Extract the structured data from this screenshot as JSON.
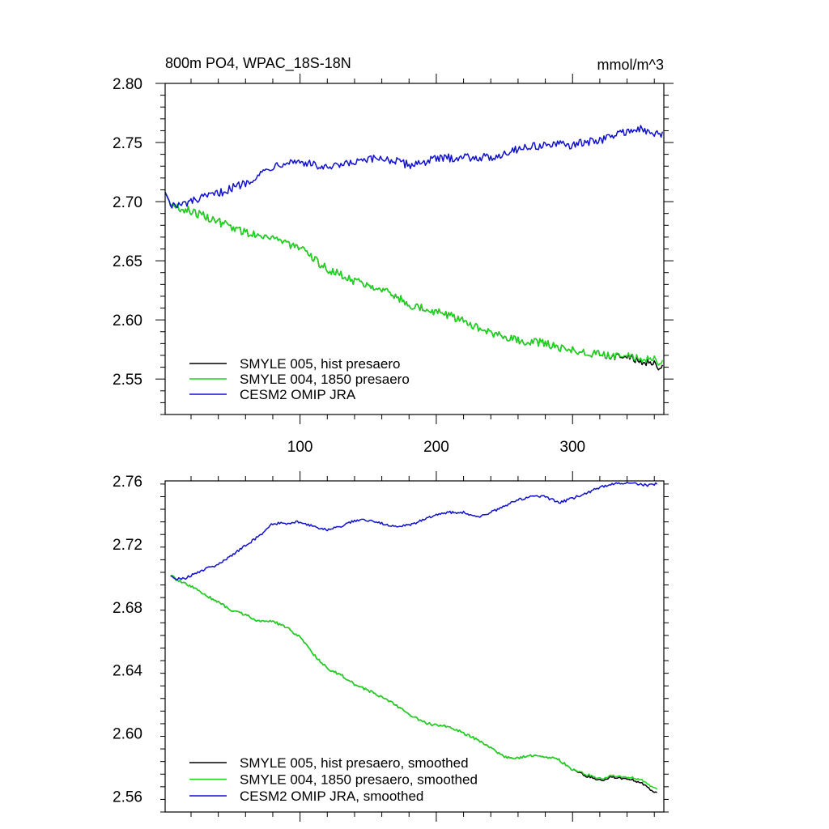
{
  "figure": {
    "title_left": "800m PO4, WPAC_18S-18N",
    "title_right": "mmol/m^3"
  },
  "colors": {
    "hist": "#000000",
    "y1850": "#19d919",
    "omip": "#1010d0"
  },
  "chart_data": [
    {
      "type": "line",
      "title": "800m PO4, WPAC_18S-18N",
      "units": "mmol/m^3",
      "xlim": [
        1,
        367
      ],
      "ylim": [
        2.52,
        2.8
      ],
      "xticks": [
        100,
        200,
        300
      ],
      "xtick_labels": [
        "100",
        "200",
        "300"
      ],
      "yticks": [
        2.55,
        2.6,
        2.65,
        2.7,
        2.75,
        2.8
      ],
      "ytick_labels": [
        "2.55",
        "2.60",
        "2.65",
        "2.70",
        "2.75",
        "2.80"
      ],
      "noise": 0.0035,
      "legend_position": "bottom-left",
      "series": [
        {
          "name": "SMYLE 005, hist presaero",
          "color": "#000000",
          "x": [
            1,
            5,
            10,
            20,
            40,
            60,
            80,
            100,
            120,
            140,
            160,
            180,
            200,
            220,
            240,
            260,
            280,
            300,
            320,
            340,
            350,
            360,
            366
          ],
          "y": [
            2.708,
            2.698,
            2.695,
            2.692,
            2.683,
            2.674,
            2.67,
            2.66,
            2.643,
            2.633,
            2.627,
            2.613,
            2.607,
            2.6,
            2.588,
            2.583,
            2.58,
            2.574,
            2.571,
            2.569,
            2.566,
            2.562,
            2.56
          ]
        },
        {
          "name": "SMYLE 004, 1850 presaero",
          "color": "#19d919",
          "x": [
            1,
            5,
            10,
            20,
            40,
            60,
            80,
            100,
            120,
            140,
            160,
            180,
            200,
            220,
            240,
            260,
            280,
            300,
            320,
            340,
            350,
            360,
            366
          ],
          "y": [
            2.708,
            2.698,
            2.695,
            2.692,
            2.683,
            2.674,
            2.67,
            2.66,
            2.643,
            2.633,
            2.627,
            2.613,
            2.607,
            2.6,
            2.588,
            2.583,
            2.58,
            2.574,
            2.571,
            2.57,
            2.568,
            2.566,
            2.564
          ]
        },
        {
          "name": "CESM2 OMIP JRA",
          "color": "#1010d0",
          "x": [
            1,
            5,
            10,
            20,
            40,
            60,
            80,
            90,
            100,
            120,
            140,
            160,
            180,
            200,
            220,
            240,
            260,
            280,
            300,
            320,
            340,
            350,
            360,
            366
          ],
          "y": [
            2.708,
            2.698,
            2.696,
            2.7,
            2.707,
            2.716,
            2.73,
            2.734,
            2.734,
            2.728,
            2.733,
            2.737,
            2.731,
            2.736,
            2.738,
            2.737,
            2.745,
            2.748,
            2.748,
            2.752,
            2.76,
            2.761,
            2.757,
            2.757
          ]
        }
      ]
    },
    {
      "type": "line",
      "xlim": [
        1,
        367
      ],
      "ylim": [
        2.55,
        2.76
      ],
      "xticks": [
        100,
        200,
        300
      ],
      "xtick_labels": [
        "100",
        "200",
        "300"
      ],
      "yticks": [
        2.56,
        2.6,
        2.64,
        2.68,
        2.72,
        2.76
      ],
      "ytick_labels": [
        "2.56",
        "2.60",
        "2.64",
        "2.68",
        "2.72",
        "2.76"
      ],
      "noise": 0.0008,
      "legend_position": "bottom-left",
      "series": [
        {
          "name": "SMYLE 005, hist presaero, smoothed",
          "color": "#000000",
          "x": [
            5,
            10,
            20,
            30,
            40,
            50,
            60,
            70,
            80,
            90,
            100,
            110,
            120,
            130,
            140,
            150,
            160,
            170,
            180,
            190,
            200,
            210,
            220,
            230,
            240,
            250,
            260,
            270,
            280,
            290,
            300,
            310,
            320,
            330,
            340,
            350,
            355,
            360,
            362
          ],
          "y": [
            2.7,
            2.697,
            2.693,
            2.688,
            2.683,
            2.678,
            2.675,
            2.671,
            2.671,
            2.667,
            2.661,
            2.65,
            2.641,
            2.637,
            2.631,
            2.627,
            2.623,
            2.618,
            2.612,
            2.607,
            2.605,
            2.604,
            2.6,
            2.596,
            2.591,
            2.585,
            2.584,
            2.586,
            2.585,
            2.583,
            2.577,
            2.573,
            2.57,
            2.572,
            2.571,
            2.569,
            2.566,
            2.562,
            2.562
          ]
        },
        {
          "name": "SMYLE 004, 1850 presaero, smoothed",
          "color": "#19d919",
          "x": [
            5,
            10,
            20,
            30,
            40,
            50,
            60,
            70,
            80,
            90,
            100,
            110,
            120,
            130,
            140,
            150,
            160,
            170,
            180,
            190,
            200,
            210,
            220,
            230,
            240,
            250,
            260,
            270,
            280,
            290,
            300,
            310,
            320,
            330,
            340,
            350,
            355,
            360,
            362
          ],
          "y": [
            2.7,
            2.697,
            2.693,
            2.688,
            2.683,
            2.678,
            2.675,
            2.671,
            2.671,
            2.667,
            2.661,
            2.65,
            2.641,
            2.637,
            2.631,
            2.627,
            2.623,
            2.618,
            2.612,
            2.607,
            2.605,
            2.604,
            2.6,
            2.596,
            2.591,
            2.585,
            2.584,
            2.586,
            2.585,
            2.583,
            2.577,
            2.574,
            2.571,
            2.573,
            2.572,
            2.571,
            2.568,
            2.565,
            2.564
          ]
        },
        {
          "name": "CESM2 OMIP JRA, smoothed",
          "color": "#1010d0",
          "x": [
            5,
            10,
            15,
            20,
            30,
            40,
            50,
            60,
            70,
            80,
            90,
            100,
            110,
            120,
            130,
            140,
            150,
            160,
            170,
            180,
            190,
            200,
            210,
            220,
            230,
            240,
            250,
            260,
            270,
            280,
            290,
            300,
            310,
            320,
            330,
            340,
            350,
            355,
            360,
            362
          ],
          "y": [
            2.7,
            2.698,
            2.698,
            2.7,
            2.704,
            2.707,
            2.713,
            2.719,
            2.725,
            2.733,
            2.733,
            2.734,
            2.731,
            2.729,
            2.731,
            2.735,
            2.735,
            2.733,
            2.731,
            2.732,
            2.735,
            2.739,
            2.74,
            2.74,
            2.737,
            2.74,
            2.744,
            2.748,
            2.75,
            2.75,
            2.746,
            2.749,
            2.752,
            2.756,
            2.758,
            2.759,
            2.758,
            2.757,
            2.758,
            2.758
          ]
        }
      ]
    }
  ]
}
